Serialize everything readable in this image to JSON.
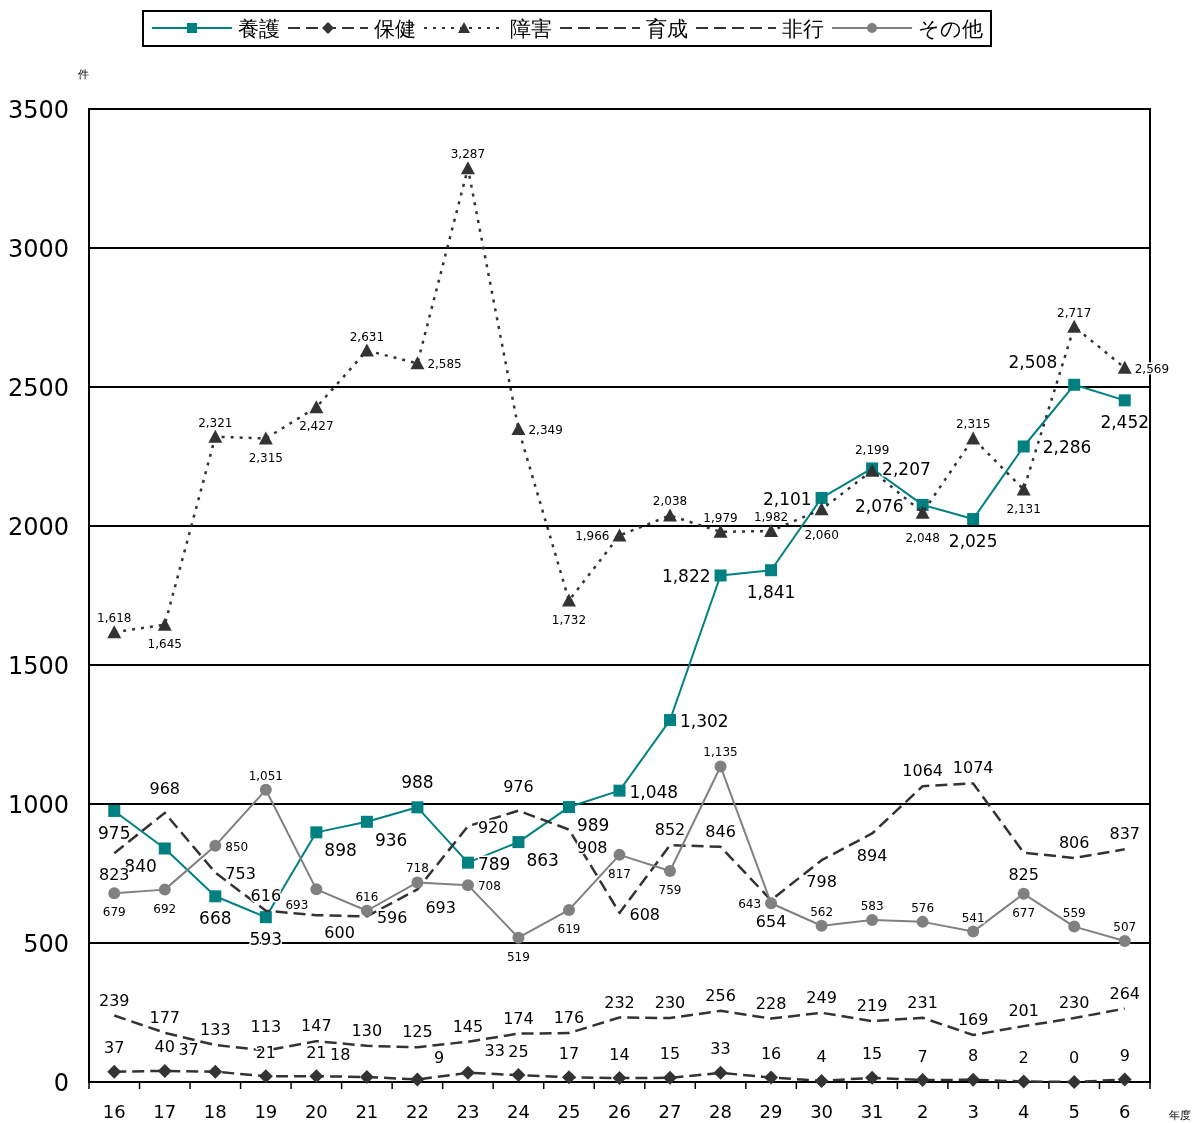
{
  "chart_data": {
    "type": "line",
    "ylabel": "件",
    "xlabel": "年度",
    "categories": [
      "16",
      "17",
      "18",
      "19",
      "20",
      "21",
      "22",
      "23",
      "24",
      "25",
      "26",
      "27",
      "28",
      "29",
      "30",
      "31",
      "2",
      "3",
      "4",
      "5",
      "6"
    ],
    "ylim": [
      0,
      3500
    ],
    "yticks": [
      0,
      500,
      1000,
      1500,
      2000,
      2500,
      3000,
      3500
    ],
    "grid": "y",
    "legend": "top",
    "series": [
      {
        "name": "養護",
        "color": "#008080",
        "marker": "square",
        "line_style": "solid",
        "values": [
          975,
          840,
          668,
          593,
          898,
          936,
          988,
          789,
          863,
          989,
          1048,
          1302,
          1822,
          1841,
          2101,
          2207,
          2076,
          2025,
          2286,
          2508,
          2452
        ],
        "value_labels": [
          "975",
          "840",
          "668",
          "593",
          "898",
          "936",
          "988",
          "789",
          "863",
          "989",
          "1,048",
          "1,302",
          "1,822",
          "1,841",
          "2,101",
          "2,207",
          "2,076",
          "2,025",
          "2,286",
          "2,508",
          "2,452"
        ]
      },
      {
        "name": "保健",
        "color": "#333333",
        "marker": "diamond",
        "line_style": "dashed",
        "values": [
          37,
          40,
          37,
          21,
          21,
          18,
          9,
          33,
          25,
          17,
          14,
          15,
          33,
          16,
          4,
          15,
          7,
          8,
          2,
          0,
          9
        ],
        "value_labels": [
          "37",
          "40",
          "37",
          "21",
          "21",
          "18",
          "9",
          "33",
          "25",
          "17",
          "14",
          "15",
          "33",
          "16",
          "4",
          "15",
          "7",
          "8",
          "2",
          "0",
          "9"
        ]
      },
      {
        "name": "障害",
        "color": "#333333",
        "marker": "triangle",
        "line_style": "dotted",
        "values": [
          1618,
          1645,
          2321,
          2315,
          2427,
          2631,
          2585,
          3287,
          2349,
          1732,
          1966,
          2038,
          1979,
          1982,
          2060,
          2199,
          2048,
          2315,
          2131,
          2717,
          2569
        ],
        "value_labels": [
          "1,618",
          "1,645",
          "2,321",
          "2,315",
          "2,427",
          "2,631",
          "2,585",
          "3,287",
          "2,349",
          "1,732",
          "1,966",
          "2,038",
          "1,979",
          "1,982",
          "2,060",
          "2,199",
          "2,048",
          "2,315",
          "2,131",
          "2,717",
          "2,569"
        ]
      },
      {
        "name": "育成",
        "color": "#333333",
        "marker": "none",
        "line_style": "dashed",
        "values": [
          823,
          968,
          753,
          616,
          600,
          596,
          693,
          920,
          976,
          908,
          608,
          852,
          846,
          654,
          798,
          894,
          1064,
          1074,
          825,
          806,
          837
        ],
        "value_labels": [
          "823",
          "968",
          "753",
          "616",
          "600",
          "596",
          "693",
          "920",
          "976",
          "908",
          "608",
          "852",
          "846",
          "654",
          "798",
          "894",
          "1064",
          "1074",
          "825",
          "806",
          "837"
        ]
      },
      {
        "name": "非行",
        "color": "#333333",
        "marker": "none",
        "line_style": "dashed",
        "values": [
          239,
          177,
          133,
          113,
          147,
          130,
          125,
          145,
          174,
          176,
          232,
          230,
          256,
          228,
          249,
          219,
          231,
          169,
          201,
          230,
          264
        ],
        "value_labels": [
          "239",
          "177",
          "133",
          "113",
          "147",
          "130",
          "125",
          "145",
          "174",
          "176",
          "232",
          "230",
          "256",
          "228",
          "249",
          "219",
          "231",
          "169",
          "201",
          "230",
          "264"
        ]
      },
      {
        "name": "その他",
        "color": "#808080",
        "marker": "circle",
        "line_style": "solid",
        "values": [
          679,
          692,
          850,
          1051,
          693,
          616,
          718,
          708,
          519,
          619,
          817,
          759,
          1135,
          643,
          562,
          583,
          576,
          541,
          677,
          559,
          507
        ],
        "value_labels": [
          "679",
          "692",
          "850",
          "1,051",
          "693",
          "616",
          "718",
          "708",
          "519",
          "619",
          "817",
          "759",
          "1,135",
          "643",
          "562",
          "583",
          "576",
          "541",
          "677",
          "559",
          "507"
        ]
      }
    ]
  }
}
